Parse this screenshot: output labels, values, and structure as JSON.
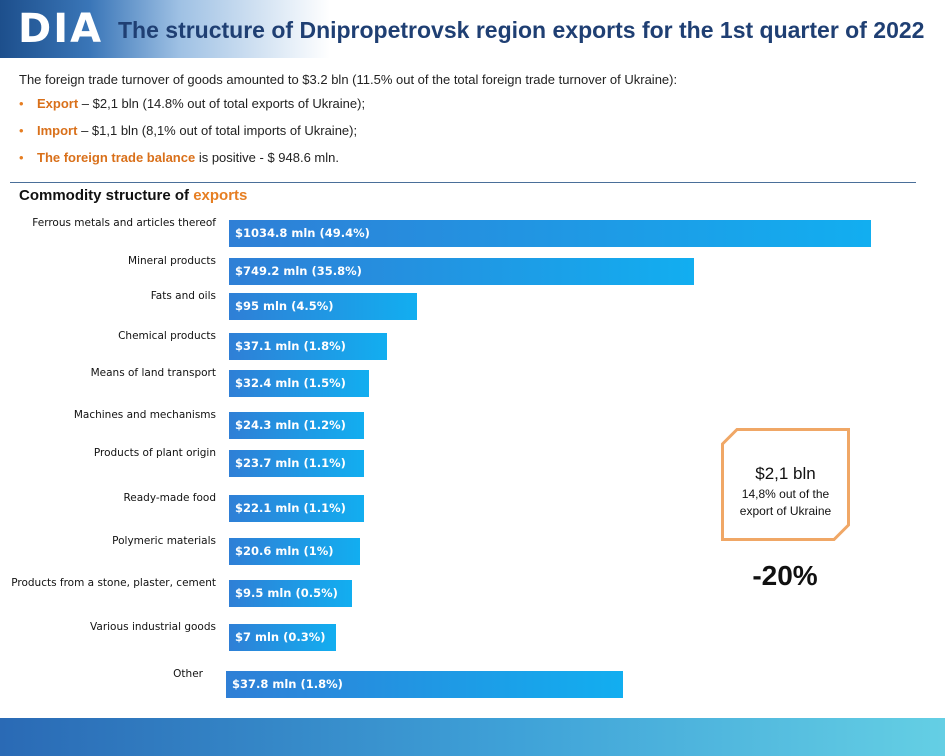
{
  "header": {
    "logo": "DIA",
    "title": "The structure of Dnipropetrovsk region exports for the 1st quarter of 2022"
  },
  "summary": {
    "intro": "The foreign trade turnover of goods amounted to $3.2 bln (11.5% out of the total foreign trade turnover of Ukraine):",
    "bullets": [
      {
        "key": "Export",
        "text": " – $2,1 bln (14.8% out of total exports of Ukraine);"
      },
      {
        "key": "Import",
        "text": " – $1,1 bln (8,1% out of total imports of Ukraine);"
      },
      {
        "key": "The foreign trade balance",
        "text": " is positive - $ 948.6 mln."
      }
    ]
  },
  "section": {
    "title_plain": "Commodity structure of ",
    "title_accent": "exports"
  },
  "callout": {
    "value": "$2,1 bln",
    "note": "14,8% out of the export of Ukraine",
    "change": "-20%"
  },
  "colors": {
    "accent": "#e67e22",
    "title_blue": "#1f3f73",
    "bar_start": "#2f7fd6",
    "bar_end": "#12aef0"
  },
  "chart_data": {
    "type": "bar",
    "orientation": "horizontal",
    "title": "Commodity structure of exports",
    "categories": [
      "Ferrous metals and articles thereof",
      "Mineral products",
      "Fats and oils",
      "Chemical products",
      "Means of land transport",
      "Machines and mechanisms",
      "Products of plant origin",
      "Ready-made food",
      "Polymeric materials",
      "Products from a stone, plaster, cement",
      "Various industrial goods",
      "Other"
    ],
    "values": [
      1034.8,
      749.2,
      95,
      37.1,
      32.4,
      24.3,
      23.7,
      22.1,
      20.6,
      9.5,
      7,
      37.8
    ],
    "shares": [
      49.4,
      35.8,
      4.5,
      1.8,
      1.5,
      1.2,
      1.1,
      1.1,
      1,
      0.5,
      0.3,
      1.8
    ],
    "data_labels": [
      "$1034.8 mln (49.4%)",
      "$749.2 mln (35.8%)",
      "$95 mln (4.5%)",
      "$37.1 mln (1.8%)",
      "$32.4 mln (1.5%)",
      "$24.3 mln (1.2%)",
      "$23.7 mln (1.1%)",
      "$22.1 mln (1.1%)",
      "$20.6 mln (1%)",
      "$9.5 mln (0.5%)",
      "$7 mln (0.3%)",
      "$37.8 mln (1.8%)"
    ],
    "unit": "mln USD",
    "grid": false,
    "legend": "none"
  }
}
